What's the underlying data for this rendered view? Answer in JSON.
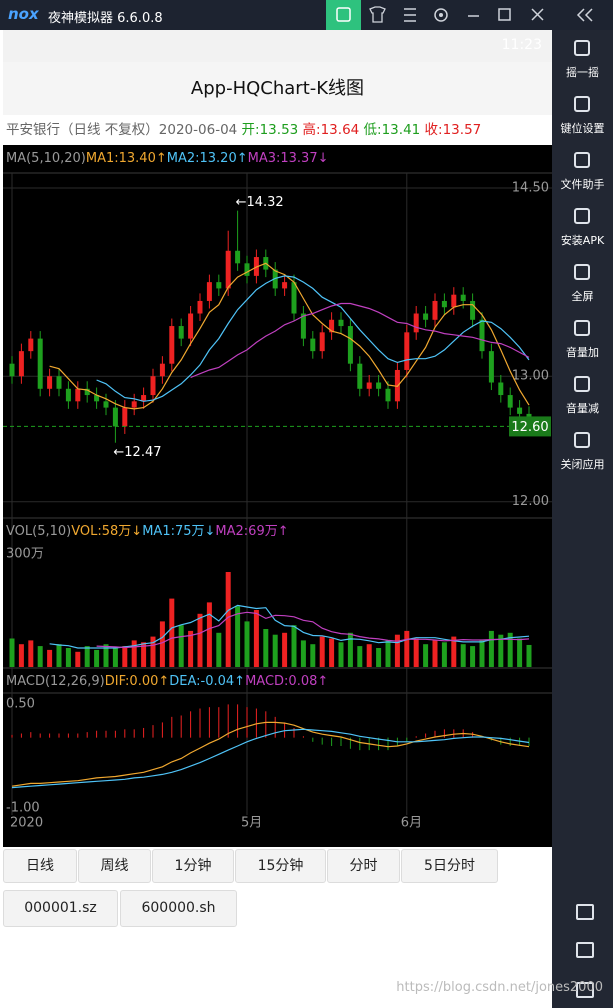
{
  "emulator": {
    "logo": "nox",
    "title": "夜神模拟器 6.6.0.8",
    "sidebar": [
      "摇一摇",
      "键位设置",
      "文件助手",
      "安装APK",
      "全屏",
      "音量加",
      "音量减",
      "关闭应用"
    ]
  },
  "status_bar": {
    "time": "11:23"
  },
  "app": {
    "title": "App-HQChart-K线图"
  },
  "info": {
    "name": "平安银行（日线 不复权）2020-06-04",
    "open": "开:13.53",
    "high": "高:13.64",
    "low": "低:13.41",
    "close": "收:13.57"
  },
  "chart": {
    "type": "candlestick",
    "up_color": "#ee2222",
    "down_color": "#1ea01e",
    "ylim": [
      11.87,
      14.62
    ],
    "yticks": [
      {
        "value": 14.5,
        "label": "14.50"
      },
      {
        "value": 13,
        "label": "13.00"
      },
      {
        "value": 12,
        "label": "12.00"
      }
    ],
    "xlabels": [
      {
        "index": 0,
        "label": "2020"
      },
      {
        "index": 25,
        "label": "5月"
      },
      {
        "index": 42,
        "label": "6月"
      }
    ],
    "candles": [
      [
        13.1,
        13.16,
        12.94,
        13.0
      ],
      [
        13.0,
        13.26,
        12.94,
        13.2
      ],
      [
        13.2,
        13.36,
        13.14,
        13.3
      ],
      [
        13.3,
        13.36,
        12.84,
        12.9
      ],
      [
        12.9,
        13.06,
        12.84,
        13.0
      ],
      [
        13.0,
        13.06,
        12.84,
        12.9
      ],
      [
        12.9,
        12.96,
        12.74,
        12.8
      ],
      [
        12.8,
        12.96,
        12.74,
        12.9
      ],
      [
        12.9,
        12.96,
        12.79,
        12.85
      ],
      [
        12.85,
        12.91,
        12.74,
        12.8
      ],
      [
        12.8,
        12.86,
        12.69,
        12.75
      ],
      [
        12.75,
        12.81,
        12.47,
        12.6
      ],
      [
        12.6,
        12.81,
        12.54,
        12.75
      ],
      [
        12.75,
        12.86,
        12.69,
        12.8
      ],
      [
        12.8,
        12.91,
        12.74,
        12.85
      ],
      [
        12.85,
        13.06,
        12.79,
        13.0
      ],
      [
        13.0,
        13.16,
        12.94,
        13.1
      ],
      [
        13.1,
        13.46,
        13.04,
        13.4
      ],
      [
        13.4,
        13.46,
        13.24,
        13.3
      ],
      [
        13.3,
        13.56,
        13.24,
        13.5
      ],
      [
        13.5,
        13.66,
        13.44,
        13.6
      ],
      [
        13.6,
        13.81,
        13.54,
        13.75
      ],
      [
        13.75,
        13.81,
        13.64,
        13.7
      ],
      [
        13.7,
        14.16,
        13.64,
        14.0
      ],
      [
        14.0,
        14.32,
        13.84,
        13.9
      ],
      [
        13.9,
        13.96,
        13.74,
        13.8
      ],
      [
        13.8,
        14.01,
        13.74,
        13.95
      ],
      [
        13.95,
        14.01,
        13.79,
        13.85
      ],
      [
        13.85,
        13.91,
        13.64,
        13.7
      ],
      [
        13.7,
        13.81,
        13.64,
        13.75
      ],
      [
        13.75,
        13.81,
        13.44,
        13.5
      ],
      [
        13.5,
        13.56,
        13.24,
        13.3
      ],
      [
        13.3,
        13.36,
        13.14,
        13.2
      ],
      [
        13.2,
        13.41,
        13.14,
        13.35
      ],
      [
        13.35,
        13.51,
        13.29,
        13.45
      ],
      [
        13.45,
        13.51,
        13.34,
        13.4
      ],
      [
        13.4,
        13.46,
        13.04,
        13.1
      ],
      [
        13.1,
        13.16,
        12.84,
        12.9
      ],
      [
        12.9,
        13.01,
        12.84,
        12.95
      ],
      [
        12.95,
        13.01,
        12.84,
        12.9
      ],
      [
        12.9,
        12.96,
        12.74,
        12.8
      ],
      [
        12.8,
        13.11,
        12.74,
        13.05
      ],
      [
        13.05,
        13.41,
        12.99,
        13.35
      ],
      [
        13.35,
        13.56,
        13.29,
        13.5
      ],
      [
        13.5,
        13.56,
        13.39,
        13.45
      ],
      [
        13.45,
        13.66,
        13.39,
        13.6
      ],
      [
        13.6,
        13.66,
        13.49,
        13.55
      ],
      [
        13.55,
        13.71,
        13.49,
        13.65
      ],
      [
        13.65,
        13.71,
        13.54,
        13.6
      ],
      [
        13.6,
        13.66,
        13.39,
        13.45
      ],
      [
        13.45,
        13.51,
        13.14,
        13.2
      ],
      [
        13.2,
        13.26,
        12.89,
        12.95
      ],
      [
        12.95,
        13.01,
        12.79,
        12.85
      ],
      [
        12.85,
        12.91,
        12.69,
        12.75
      ],
      [
        12.75,
        12.81,
        12.64,
        12.7
      ],
      [
        12.7,
        12.76,
        12.54,
        12.6
      ]
    ],
    "ma_title": "MA(5,10,20)",
    "ma": [
      {
        "name": "MA1:13.40↑",
        "color": "#f0a830",
        "values": [
          null,
          null,
          null,
          null,
          13.08,
          13.06,
          12.98,
          12.9,
          12.89,
          12.85,
          12.82,
          12.78,
          12.75,
          12.74,
          12.75,
          12.8,
          12.9,
          13.03,
          13.13,
          13.26,
          13.38,
          13.51,
          13.57,
          13.71,
          13.79,
          13.83,
          13.87,
          13.9,
          13.84,
          13.81,
          13.75,
          13.62,
          13.49,
          13.42,
          13.36,
          13.34,
          13.3,
          13.24,
          13.16,
          13.05,
          12.93,
          12.92,
          13.01,
          13.12,
          13.23,
          13.39,
          13.49,
          13.55,
          13.57,
          13.57,
          13.49,
          13.37,
          13.21,
          13.04,
          12.89,
          12.77
        ]
      },
      {
        "name": "MA2:13.20↑",
        "color": "#4fc3f7",
        "values": [
          null,
          null,
          null,
          null,
          null,
          null,
          null,
          null,
          null,
          12.97,
          12.94,
          12.88,
          12.83,
          12.82,
          12.8,
          12.81,
          12.84,
          12.89,
          12.94,
          13.01,
          13.09,
          13.21,
          13.3,
          13.42,
          13.53,
          13.61,
          13.69,
          13.74,
          13.78,
          13.8,
          13.79,
          13.75,
          13.7,
          13.63,
          13.59,
          13.55,
          13.46,
          13.37,
          13.29,
          13.21,
          13.14,
          13.11,
          13.13,
          13.14,
          13.14,
          13.16,
          13.21,
          13.28,
          13.35,
          13.4,
          13.44,
          13.43,
          13.38,
          13.31,
          13.23,
          13.13
        ]
      },
      {
        "name": "MA3:13.37↓",
        "color": "#c040c0",
        "values": [
          null,
          null,
          null,
          null,
          null,
          null,
          null,
          null,
          null,
          null,
          null,
          null,
          null,
          null,
          null,
          null,
          null,
          null,
          null,
          12.99,
          13.02,
          13.05,
          13.07,
          13.12,
          13.17,
          13.21,
          13.27,
          13.32,
          13.36,
          13.41,
          13.44,
          13.48,
          13.5,
          13.53,
          13.56,
          13.58,
          13.58,
          13.56,
          13.54,
          13.51,
          13.47,
          13.43,
          13.42,
          13.39,
          13.37,
          13.36,
          13.34,
          13.33,
          13.32,
          13.31,
          13.29,
          13.27,
          13.26,
          13.23,
          13.19,
          13.15
        ]
      }
    ],
    "annotations": [
      {
        "text": "←14.32",
        "index": 24,
        "value": 14.32
      },
      {
        "text": "←12.47",
        "index": 11,
        "value": 12.47
      }
    ],
    "last_price": {
      "value": 12.6,
      "label": "12.60",
      "color": "#1a7a1a"
    },
    "vol": {
      "title": "VOL(5,10)",
      "label": "VOL:58万↓",
      "ylim": [
        0,
        300
      ],
      "yticks": [
        {
          "value": 300,
          "label": "300万"
        }
      ],
      "values": [
        75,
        60,
        70,
        55,
        45,
        60,
        50,
        40,
        55,
        45,
        60,
        50,
        55,
        70,
        65,
        80,
        120,
        180,
        110,
        95,
        140,
        170,
        90,
        250,
        160,
        120,
        150,
        100,
        85,
        90,
        110,
        70,
        60,
        80,
        75,
        65,
        90,
        55,
        60,
        50,
        70,
        85,
        95,
        75,
        60,
        70,
        65,
        80,
        60,
        55,
        70,
        95,
        85,
        90,
        75,
        58
      ],
      "ma": [
        {
          "name": "MA1:75万↓",
          "color": "#4fc3f7",
          "values": [
            null,
            null,
            null,
            null,
            61,
            58,
            56,
            50,
            50,
            50,
            50,
            50,
            53,
            56,
            61,
            64,
            78,
            103,
            111,
            117,
            129,
            139,
            121,
            149,
            162,
            158,
            154,
            156,
            123,
            109,
            107,
            91,
            83,
            82,
            77,
            70,
            74,
            73,
            69,
            64,
            66,
            64,
            72,
            77,
            77,
            77,
            73,
            69,
            66,
            66,
            66,
            72,
            73,
            77,
            79,
            81
          ]
        },
        {
          "name": "MA2:69万↑",
          "color": "#c040c0",
          "values": [
            null,
            null,
            null,
            null,
            null,
            null,
            null,
            null,
            null,
            55,
            54,
            53,
            51,
            53,
            55,
            57,
            64,
            76,
            80,
            83,
            89,
            101,
            109,
            131,
            140,
            144,
            141,
            128,
            136,
            135,
            132,
            123,
            119,
            102,
            93,
            88,
            86,
            80,
            76,
            74,
            70,
            68,
            73,
            73,
            73,
            71,
            69,
            70,
            72,
            71,
            71,
            72,
            73,
            73,
            72,
            74
          ]
        }
      ]
    },
    "macd": {
      "title": "MACD(12,26,9)",
      "ylim": [
        -1,
        0.5
      ],
      "yticks": [
        {
          "value": 0.5,
          "label": "0.50"
        },
        {
          "value": -1,
          "label": "-1.00"
        }
      ],
      "lines": [
        {
          "name": "DIF:0.00↑",
          "color": "#f0a830",
          "values": [
            -0.7,
            -0.68,
            -0.66,
            -0.66,
            -0.65,
            -0.64,
            -0.63,
            -0.62,
            -0.6,
            -0.58,
            -0.57,
            -0.56,
            -0.54,
            -0.52,
            -0.5,
            -0.46,
            -0.42,
            -0.35,
            -0.3,
            -0.22,
            -0.15,
            -0.08,
            -0.02,
            0.06,
            0.12,
            0.16,
            0.2,
            0.22,
            0.22,
            0.21,
            0.18,
            0.13,
            0.08,
            0.05,
            0.03,
            0.01,
            -0.03,
            -0.07,
            -0.09,
            -0.11,
            -0.13,
            -0.12,
            -0.09,
            -0.05,
            -0.02,
            0.01,
            0.03,
            0.05,
            0.06,
            0.05,
            0.02,
            -0.02,
            -0.06,
            -0.09,
            -0.11,
            -0.13
          ]
        },
        {
          "name": "DEA:-0.04↑",
          "color": "#4fc3f7",
          "values": [
            -0.72,
            -0.71,
            -0.7,
            -0.69,
            -0.68,
            -0.67,
            -0.66,
            -0.65,
            -0.64,
            -0.63,
            -0.62,
            -0.61,
            -0.6,
            -0.58,
            -0.57,
            -0.55,
            -0.53,
            -0.5,
            -0.46,
            -0.41,
            -0.36,
            -0.3,
            -0.24,
            -0.18,
            -0.12,
            -0.06,
            -0.01,
            0.03,
            0.07,
            0.1,
            0.11,
            0.12,
            0.11,
            0.1,
            0.09,
            0.07,
            0.05,
            0.02,
            0,
            -0.02,
            -0.04,
            -0.06,
            -0.06,
            -0.06,
            -0.05,
            -0.04,
            -0.03,
            -0.01,
            0,
            0.01,
            0.01,
            0,
            -0.01,
            -0.03,
            -0.05,
            -0.07
          ]
        }
      ],
      "histogram": {
        "name": "MACD:0.08↑",
        "color": "#c040c0",
        "values": [
          0.04,
          0.06,
          0.08,
          0.06,
          0.06,
          0.06,
          0.06,
          0.06,
          0.08,
          0.1,
          0.1,
          0.1,
          0.12,
          0.12,
          0.14,
          0.18,
          0.22,
          0.3,
          0.32,
          0.38,
          0.42,
          0.44,
          0.44,
          0.48,
          0.48,
          0.44,
          0.42,
          0.38,
          0.3,
          0.22,
          0.14,
          0.02,
          -0.06,
          -0.1,
          -0.12,
          -0.12,
          -0.16,
          -0.18,
          -0.18,
          -0.18,
          -0.18,
          -0.12,
          -0.06,
          0.02,
          0.06,
          0.1,
          0.12,
          0.12,
          0.12,
          0.08,
          0.02,
          -0.04,
          -0.1,
          -0.12,
          -0.12,
          -0.12
        ]
      }
    }
  },
  "buttons": {
    "periods": [
      "日线",
      "周线",
      "1分钟",
      "15分钟",
      "分时",
      "5日分时"
    ],
    "symbols": [
      "000001.sz",
      "600000.sh"
    ]
  },
  "watermark": "https://blog.csdn.net/jones2000"
}
